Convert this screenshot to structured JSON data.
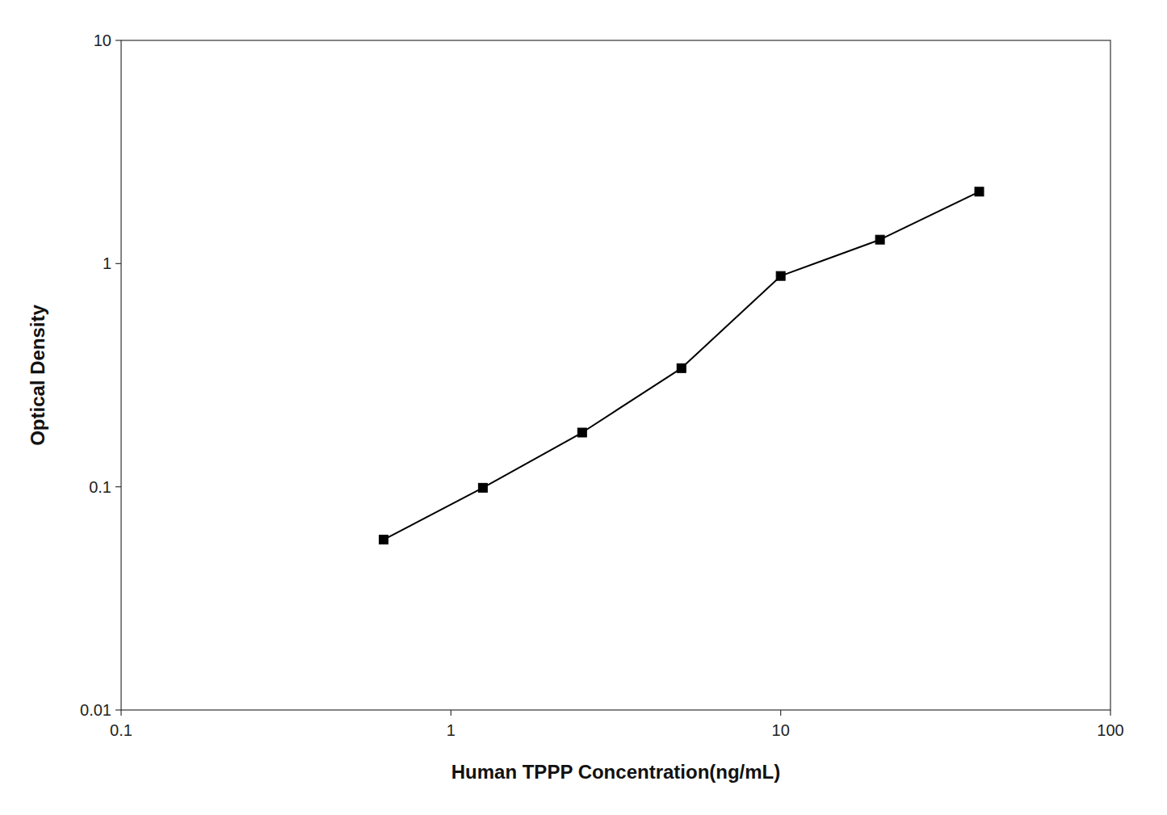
{
  "chart_data": {
    "type": "line",
    "x": [
      0.625,
      1.25,
      2.5,
      5.0,
      10.0,
      20.0,
      40.0
    ],
    "values": [
      0.058,
      0.099,
      0.175,
      0.34,
      0.88,
      1.28,
      2.1
    ],
    "color": "#000000",
    "marker": "square",
    "xlabel": "Human TPPP Concentration(ng/mL)",
    "ylabel": "Optical Density",
    "xlim": [
      0.1,
      100
    ],
    "ylim": [
      0.01,
      10
    ],
    "xticks": [
      0.1,
      1,
      10,
      100
    ],
    "yticks": [
      0.01,
      0.1,
      1,
      10
    ],
    "log": true,
    "grid": false
  }
}
